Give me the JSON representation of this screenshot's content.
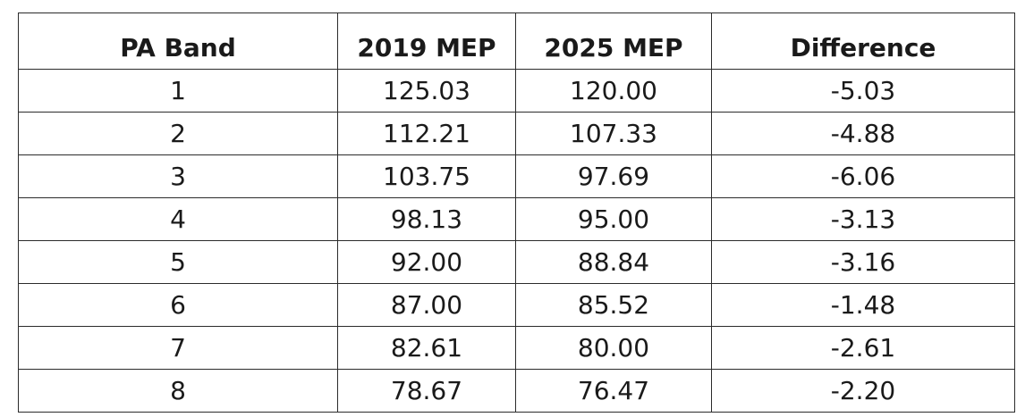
{
  "table": {
    "headers": [
      "PA Band",
      "2019 MEP",
      "2025 MEP",
      "Difference"
    ],
    "rows": [
      [
        "1",
        "125.03",
        "120.00",
        "-5.03"
      ],
      [
        "2",
        "112.21",
        "107.33",
        "-4.88"
      ],
      [
        "3",
        "103.75",
        "97.69",
        "-6.06"
      ],
      [
        "4",
        "98.13",
        "95.00",
        "-3.13"
      ],
      [
        "5",
        "92.00",
        "88.84",
        "-3.16"
      ],
      [
        "6",
        "87.00",
        "85.52",
        "-1.48"
      ],
      [
        "7",
        "82.61",
        "80.00",
        "-2.61"
      ],
      [
        "8",
        "78.67",
        "76.47",
        "-2.20"
      ]
    ]
  }
}
